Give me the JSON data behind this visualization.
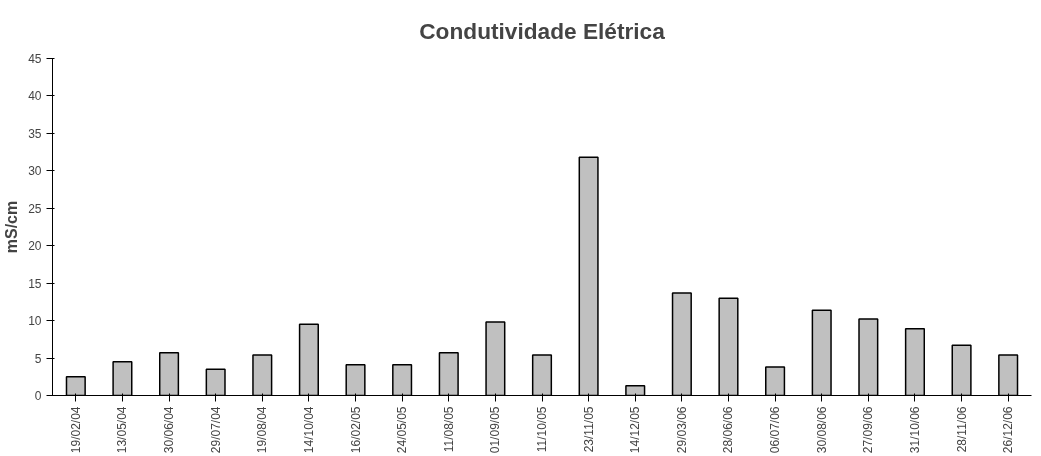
{
  "chart_data": {
    "type": "bar",
    "title": "Condutividade Elétrica",
    "ylabel": "mS/cm",
    "categories": [
      "19/02/04",
      "13/05/04",
      "30/06/04",
      "29/07/04",
      "19/08/04",
      "14/10/04",
      "16/02/05",
      "24/05/05",
      "11/08/05",
      "01/09/05",
      "11/10/05",
      "23/11/05",
      "14/12/05",
      "29/03/06",
      "28/06/06",
      "06/07/06",
      "30/08/06",
      "27/09/06",
      "31/10/06",
      "28/11/06",
      "26/12/06"
    ],
    "values": [
      2.5,
      4.5,
      5.7,
      3.5,
      5.4,
      9.5,
      4.1,
      4.1,
      5.7,
      9.8,
      5.4,
      31.8,
      1.3,
      13.7,
      13.0,
      3.8,
      11.4,
      10.2,
      8.9,
      6.7,
      5.4
    ],
    "color": "#c0c0c0",
    "ylim": [
      0,
      45
    ],
    "yticks": [
      0,
      5,
      10,
      15,
      20,
      25,
      30,
      35,
      40,
      45
    ],
    "grid": false
  }
}
